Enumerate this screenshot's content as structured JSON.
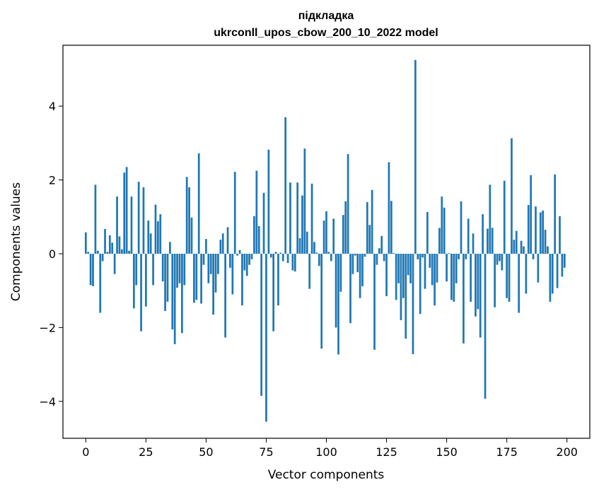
{
  "chart_data": {
    "type": "bar",
    "title": [
      "підкладка",
      "ukrconll_upos_cbow_200_10_2022 model"
    ],
    "xlabel": "Vector components",
    "ylabel": "Components values",
    "xlim": [
      -9.5,
      209.5
    ],
    "ylim": [
      -5.0,
      5.65
    ],
    "xticks": [
      0,
      25,
      50,
      75,
      100,
      125,
      150,
      175,
      200
    ],
    "xtick_labels": [
      "0",
      "25",
      "50",
      "75",
      "100",
      "125",
      "150",
      "175",
      "200"
    ],
    "yticks": [
      -4,
      -2,
      0,
      2,
      4
    ],
    "ytick_labels": [
      "−4",
      "−2",
      "0",
      "2",
      "4"
    ],
    "bar_color": "#1f77b4",
    "x": [
      0,
      1,
      2,
      3,
      4,
      5,
      6,
      7,
      8,
      9,
      10,
      11,
      12,
      13,
      14,
      15,
      16,
      17,
      18,
      19,
      20,
      21,
      22,
      23,
      24,
      25,
      26,
      27,
      28,
      29,
      30,
      31,
      32,
      33,
      34,
      35,
      36,
      37,
      38,
      39,
      40,
      41,
      42,
      43,
      44,
      45,
      46,
      47,
      48,
      49,
      50,
      51,
      52,
      53,
      54,
      55,
      56,
      57,
      58,
      59,
      60,
      61,
      62,
      63,
      64,
      65,
      66,
      67,
      68,
      69,
      70,
      71,
      72,
      73,
      74,
      75,
      76,
      77,
      78,
      79,
      80,
      81,
      82,
      83,
      84,
      85,
      86,
      87,
      88,
      89,
      90,
      91,
      92,
      93,
      94,
      95,
      96,
      97,
      98,
      99,
      100,
      101,
      102,
      103,
      104,
      105,
      106,
      107,
      108,
      109,
      110,
      111,
      112,
      113,
      114,
      115,
      116,
      117,
      118,
      119,
      120,
      121,
      122,
      123,
      124,
      125,
      126,
      127,
      128,
      129,
      130,
      131,
      132,
      133,
      134,
      135,
      136,
      137,
      138,
      139,
      140,
      141,
      142,
      143,
      144,
      145,
      146,
      147,
      148,
      149,
      150,
      151,
      152,
      153,
      154,
      155,
      156,
      157,
      158,
      159,
      160,
      161,
      162,
      163,
      164,
      165,
      166,
      167,
      168,
      169,
      170,
      171,
      172,
      173,
      174,
      175,
      176,
      177,
      178,
      179,
      180,
      181,
      182,
      183,
      184,
      185,
      186,
      187,
      188,
      189,
      190,
      191,
      192,
      193,
      194,
      195,
      196,
      197,
      198,
      199
    ],
    "values": [
      0.58,
      0.05,
      -0.85,
      -0.88,
      1.87,
      0.08,
      -1.6,
      -0.2,
      0.67,
      0.05,
      0.5,
      0.3,
      -0.55,
      1.55,
      0.47,
      0.12,
      2.2,
      2.35,
      0.08,
      1.55,
      -1.48,
      -0.85,
      1.95,
      -2.1,
      1.8,
      -1.43,
      0.9,
      0.55,
      -0.85,
      1.33,
      0.88,
      1.07,
      -0.75,
      -1.55,
      -1.3,
      0.32,
      -2.05,
      -2.45,
      -0.92,
      -0.8,
      -2.15,
      -0.85,
      2.08,
      1.8,
      0.98,
      -1.33,
      -1.25,
      2.72,
      -1.35,
      -0.3,
      0.4,
      -0.8,
      -0.55,
      -1.65,
      -1.05,
      -0.55,
      0.38,
      0.55,
      -2.27,
      0.72,
      -0.38,
      -1.1,
      2.22,
      -0.05,
      0.1,
      -1.4,
      -0.45,
      -0.6,
      -0.3,
      -0.15,
      1.02,
      2.25,
      0.75,
      -3.85,
      1.65,
      -4.55,
      2.82,
      -0.1,
      -2.1,
      0.05,
      -1.4,
      0.03,
      -0.2,
      3.7,
      -0.25,
      1.93,
      -0.45,
      -0.48,
      1.93,
      0.42,
      1.58,
      2.85,
      0.6,
      -0.95,
      1.9,
      0.32,
      0.03,
      -0.33,
      -2.57,
      0.9,
      1.15,
      0.05,
      -0.2,
      0.95,
      -2.0,
      -2.73,
      -1.03,
      1.05,
      1.42,
      2.7,
      -1.88,
      -0.55,
      -0.05,
      -0.5,
      -1.2,
      -0.88,
      -0.08,
      1.4,
      0.78,
      1.73,
      -2.6,
      -0.3,
      0.15,
      0.48,
      -0.2,
      -1.15,
      2.48,
      1.43,
      0.02,
      -1.25,
      -0.8,
      -1.8,
      -1.2,
      -2.3,
      -0.58,
      -0.8,
      -2.72,
      5.25,
      -0.15,
      -1.63,
      -0.1,
      -0.95,
      1.13,
      -0.38,
      -0.85,
      -1.4,
      -0.78,
      0.7,
      1.55,
      1.25,
      -0.75,
      0.02,
      -1.25,
      -1.3,
      -0.8,
      -0.15,
      1.42,
      -2.43,
      -0.15,
      0.95,
      -1.3,
      0.55,
      -1.7,
      -1.5,
      -2.27,
      1.07,
      -3.93,
      0.68,
      1.87,
      0.7,
      -1.45,
      -0.3,
      -0.2,
      -0.45,
      1.98,
      -1.2,
      -1.3,
      3.13,
      0.38,
      0.62,
      -1.6,
      0.35,
      0.2,
      -1.08,
      1.32,
      2.13,
      -0.15,
      1.28,
      -0.78,
      1.12,
      1.17,
      0.65,
      0.2,
      -1.3,
      -1.08,
      2.15,
      -0.93,
      1.02,
      -0.62,
      -0.38
    ]
  }
}
